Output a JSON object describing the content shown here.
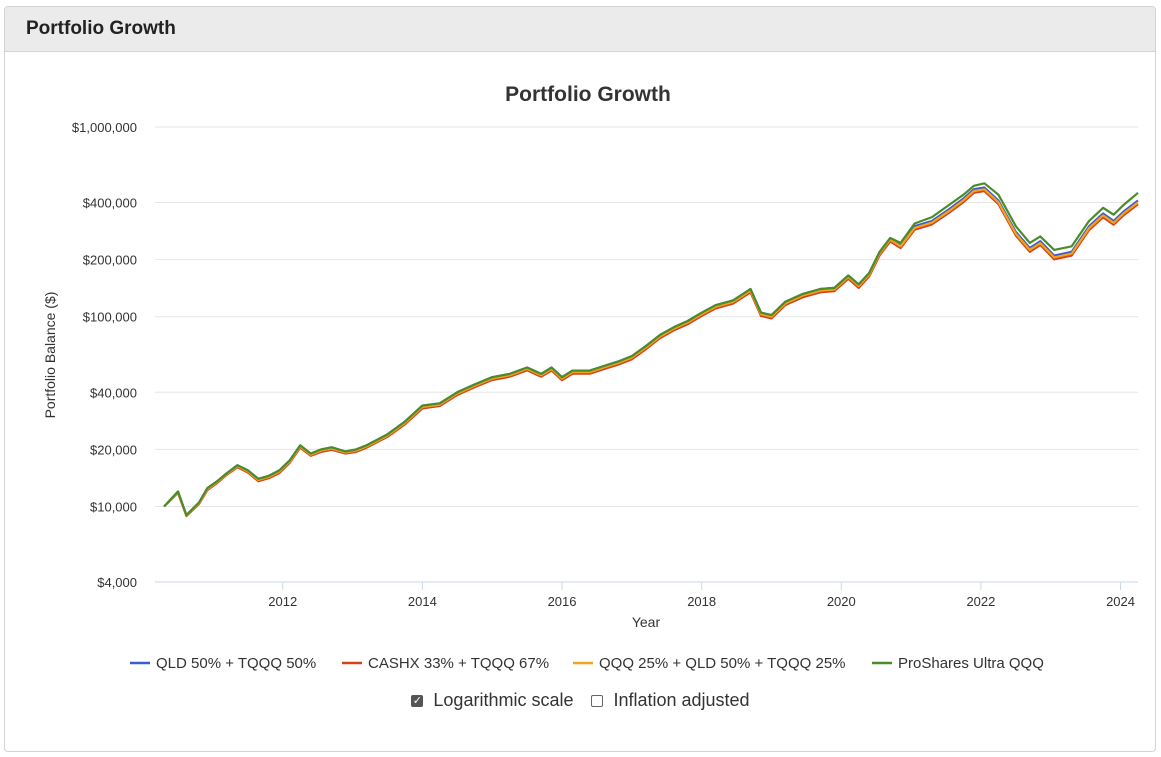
{
  "panel": {
    "title": "Portfolio Growth"
  },
  "controls": {
    "log_scale": {
      "label": "Logarithmic scale",
      "checked": true
    },
    "inflation": {
      "label": "Inflation adjusted",
      "checked": false
    }
  },
  "chart_data": {
    "type": "line",
    "title": "Portfolio Growth",
    "xlabel": "Year",
    "ylabel": "Portfolio Balance ($)",
    "yscale": "log",
    "ylim": [
      4000,
      1000000
    ],
    "xlim": [
      2010.17,
      2024.25
    ],
    "yticks": [
      {
        "value": 1000000,
        "label": "$1,000,000"
      },
      {
        "value": 400000,
        "label": "$400,000"
      },
      {
        "value": 200000,
        "label": "$200,000"
      },
      {
        "value": 100000,
        "label": "$100,000"
      },
      {
        "value": 40000,
        "label": "$40,000"
      },
      {
        "value": 20000,
        "label": "$20,000"
      },
      {
        "value": 10000,
        "label": "$10,000"
      },
      {
        "value": 4000,
        "label": "$4,000"
      }
    ],
    "xticks": [
      {
        "value": 2012,
        "label": "2012"
      },
      {
        "value": 2014,
        "label": "2014"
      },
      {
        "value": 2016,
        "label": "2016"
      },
      {
        "value": 2018,
        "label": "2018"
      },
      {
        "value": 2020,
        "label": "2020"
      },
      {
        "value": 2022,
        "label": "2022"
      },
      {
        "value": 2024,
        "label": "2024"
      }
    ],
    "x": [
      2010.3,
      2010.5,
      2010.62,
      2010.8,
      2010.92,
      2011.05,
      2011.2,
      2011.35,
      2011.5,
      2011.65,
      2011.8,
      2011.95,
      2012.1,
      2012.25,
      2012.4,
      2012.55,
      2012.7,
      2012.9,
      2013.05,
      2013.2,
      2013.5,
      2013.75,
      2014.0,
      2014.25,
      2014.5,
      2014.75,
      2015.0,
      2015.25,
      2015.5,
      2015.7,
      2015.85,
      2016.0,
      2016.15,
      2016.4,
      2016.6,
      2016.8,
      2017.0,
      2017.2,
      2017.4,
      2017.6,
      2017.8,
      2018.0,
      2018.2,
      2018.45,
      2018.7,
      2018.85,
      2019.0,
      2019.2,
      2019.45,
      2019.7,
      2019.9,
      2020.1,
      2020.25,
      2020.4,
      2020.55,
      2020.7,
      2020.85,
      2021.05,
      2021.3,
      2021.55,
      2021.75,
      2021.9,
      2022.05,
      2022.25,
      2022.5,
      2022.7,
      2022.85,
      2023.05,
      2023.3,
      2023.55,
      2023.75,
      2023.9,
      2024.05,
      2024.25
    ],
    "series": [
      {
        "name": "QLD 50% + TQQQ 50%",
        "color": "#3b5bd6",
        "values": [
          10000,
          12000,
          9000,
          10500,
          12500,
          13500,
          15000,
          16500,
          15500,
          14000,
          14500,
          15500,
          17500,
          21000,
          19000,
          20000,
          20500,
          19500,
          20000,
          21000,
          24000,
          28000,
          34000,
          35000,
          40000,
          44000,
          48000,
          50000,
          54000,
          50000,
          54000,
          48000,
          52000,
          52000,
          55000,
          58000,
          62000,
          70000,
          80000,
          88000,
          95000,
          105000,
          115000,
          122000,
          140000,
          105000,
          102000,
          120000,
          132000,
          140000,
          142000,
          165000,
          148000,
          170000,
          220000,
          260000,
          240000,
          300000,
          320000,
          370000,
          420000,
          470000,
          480000,
          410000,
          280000,
          230000,
          250000,
          210000,
          220000,
          300000,
          350000,
          320000,
          360000,
          410000
        ]
      },
      {
        "name": "CASHX 33% + TQQQ 67%",
        "color": "#d2421e",
        "values": [
          10000,
          11800,
          8900,
          10300,
          12200,
          13200,
          14700,
          16100,
          15100,
          13600,
          14100,
          15000,
          17000,
          20400,
          18500,
          19400,
          19900,
          19000,
          19400,
          20400,
          23300,
          27100,
          32900,
          33900,
          38700,
          42600,
          46400,
          48300,
          52200,
          48300,
          52100,
          46300,
          50100,
          50100,
          53000,
          55900,
          59700,
          67400,
          77000,
          84700,
          91400,
          101000,
          110600,
          117300,
          134500,
          101000,
          98000,
          115300,
          126800,
          134500,
          136300,
          158400,
          142000,
          163100,
          211000,
          249300,
          230100,
          287600,
          306600,
          354500,
          402200,
          450000,
          459500,
          392400,
          267900,
          220000,
          239100,
          200800,
          210300,
          286700,
          334400,
          305600,
          343800,
          391400
        ]
      },
      {
        "name": "QQQ 25% + QLD 50% + TQQQ 25%",
        "color": "#f2a31a",
        "values": [
          10000,
          11900,
          8950,
          10400,
          12350,
          13350,
          14850,
          16300,
          15300,
          13800,
          14300,
          15250,
          17250,
          20700,
          18750,
          19700,
          20200,
          19250,
          19700,
          20700,
          23650,
          27550,
          33450,
          34450,
          39350,
          43300,
          47200,
          49150,
          53100,
          49150,
          53050,
          47150,
          51050,
          51050,
          54000,
          56950,
          60850,
          68700,
          78500,
          86350,
          93200,
          103000,
          112800,
          119650,
          137250,
          103000,
          100000,
          117650,
          129400,
          137250,
          139150,
          161700,
          145000,
          166550,
          215500,
          254650,
          235050,
          293800,
          313300,
          362250,
          411100,
          460000,
          469750,
          401200,
          273950,
          225000,
          244550,
          205400,
          215150,
          293350,
          342200,
          312800,
          351900,
          400700
        ]
      },
      {
        "name": "ProShares Ultra QQQ",
        "color": "#4a8c2a",
        "values": [
          10000,
          12000,
          9000,
          10500,
          12500,
          13500,
          15000,
          16500,
          15500,
          14000,
          14500,
          15500,
          17500,
          21000,
          19000,
          20000,
          20500,
          19500,
          20000,
          21000,
          24000,
          28000,
          34000,
          35000,
          40000,
          44000,
          48000,
          50000,
          54000,
          50000,
          54000,
          48000,
          52000,
          52000,
          55000,
          58000,
          62000,
          70000,
          80000,
          88000,
          95000,
          105000,
          115000,
          122000,
          140000,
          105000,
          102000,
          120000,
          132000,
          140000,
          142000,
          165000,
          148000,
          170000,
          220000,
          260000,
          245000,
          310000,
          335000,
          390000,
          440000,
          490000,
          505000,
          440000,
          300000,
          245000,
          265000,
          225000,
          235000,
          320000,
          375000,
          345000,
          390000,
          450000
        ]
      }
    ]
  }
}
